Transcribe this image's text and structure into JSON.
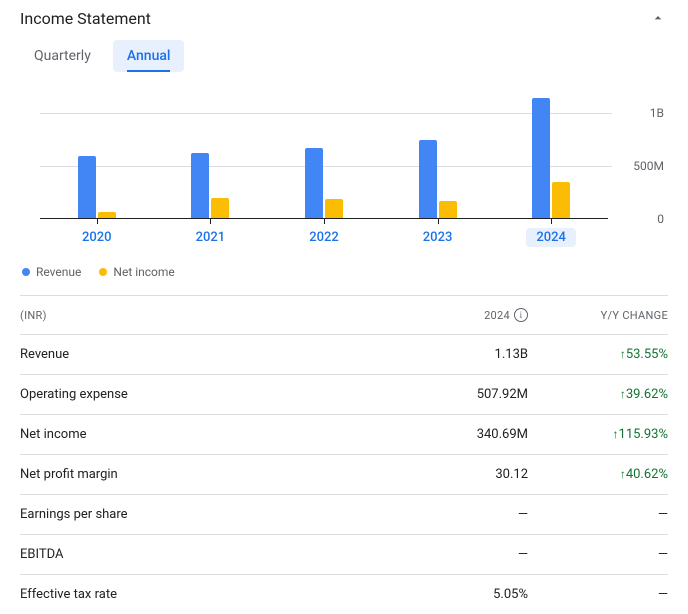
{
  "title": "Income Statement",
  "tabs": {
    "quarterly": "Quarterly",
    "annual": "Annual",
    "active": "annual"
  },
  "chart": {
    "type": "bar",
    "ymax": 1200000000,
    "ylabels": [
      {
        "value": 1000000000,
        "text": "1B"
      },
      {
        "value": 500000000,
        "text": "500M"
      },
      {
        "value": 0,
        "text": "0"
      }
    ],
    "series": [
      {
        "key": "revenue",
        "label": "Revenue",
        "color": "#4285f4"
      },
      {
        "key": "netincome",
        "label": "Net income",
        "color": "#fbbc04"
      }
    ],
    "years": [
      {
        "label": "2020",
        "revenue": 590000000,
        "netincome": 55000000,
        "active": false
      },
      {
        "label": "2021",
        "revenue": 610000000,
        "netincome": 185000000,
        "active": false
      },
      {
        "label": "2022",
        "revenue": 660000000,
        "netincome": 180000000,
        "active": false
      },
      {
        "label": "2023",
        "revenue": 735000000,
        "netincome": 158000000,
        "active": false
      },
      {
        "label": "2024",
        "revenue": 1130000000,
        "netincome": 340000000,
        "active": true
      }
    ],
    "grid_color": "#dadce0",
    "label_color": "#5f6368",
    "label_fontsize": 12,
    "xlabel_color": "#1a73e8"
  },
  "table": {
    "header": {
      "name": "(INR)",
      "value": "2024",
      "change": "Y/Y CHANGE"
    },
    "rows": [
      {
        "name": "Revenue",
        "value": "1.13B",
        "change": "53.55%",
        "dir": "up"
      },
      {
        "name": "Operating expense",
        "value": "507.92M",
        "change": "39.62%",
        "dir": "up"
      },
      {
        "name": "Net income",
        "value": "340.69M",
        "change": "115.93%",
        "dir": "up"
      },
      {
        "name": "Net profit margin",
        "value": "30.12",
        "change": "40.62%",
        "dir": "up"
      },
      {
        "name": "Earnings per share",
        "value": "—",
        "change": "—",
        "dir": "none"
      },
      {
        "name": "EBITDA",
        "value": "—",
        "change": "—",
        "dir": "none"
      },
      {
        "name": "Effective tax rate",
        "value": "5.05%",
        "change": "—",
        "dir": "none"
      }
    ]
  }
}
